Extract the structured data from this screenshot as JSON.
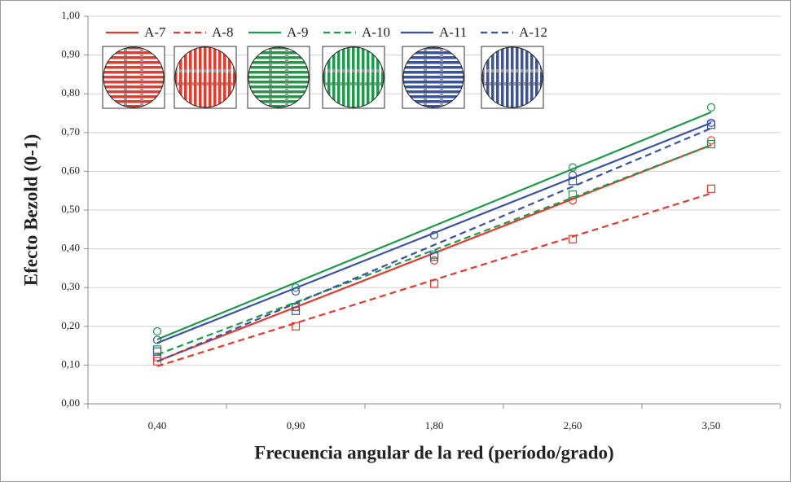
{
  "chart_data": {
    "type": "scatter-trend",
    "x_label": "Frecuencia angular de la red (período/grado)",
    "y_label": "Efecto Bezold (0-1)",
    "categories": [
      "0,40",
      "0,90",
      "1,80",
      "2,60",
      "3,50"
    ],
    "ylim": [
      0,
      1
    ],
    "yticks": [
      {
        "value": 0,
        "label": "0,00"
      },
      {
        "value": 0.1,
        "label": "0,10"
      },
      {
        "value": 0.2,
        "label": "0,20"
      },
      {
        "value": 0.3,
        "label": "0,30"
      },
      {
        "value": 0.4,
        "label": "0,40"
      },
      {
        "value": 0.5,
        "label": "0,50"
      },
      {
        "value": 0.6,
        "label": "0,60"
      },
      {
        "value": 0.7,
        "label": "0,70"
      },
      {
        "value": 0.8,
        "label": "0,80"
      },
      {
        "value": 0.9,
        "label": "0,90"
      },
      {
        "value": 1,
        "label": "1,00"
      }
    ],
    "grid": true,
    "legend": "top-left",
    "series": [
      {
        "name": "A-7",
        "color": "#e8392d",
        "marker": "circle",
        "dashed": false,
        "values": [
          0.12,
          0.25,
          0.37,
          0.525,
          0.68
        ]
      },
      {
        "name": "A-8",
        "color": "#e8392d",
        "marker": "square",
        "dashed": true,
        "values": [
          0.11,
          0.2,
          0.31,
          0.425,
          0.555
        ]
      },
      {
        "name": "A-9",
        "color": "#1e9a4a",
        "marker": "circle",
        "dashed": false,
        "values": [
          0.187,
          0.3,
          0.435,
          0.61,
          0.765
        ]
      },
      {
        "name": "A-10",
        "color": "#1e9a4a",
        "marker": "square",
        "dashed": true,
        "values": [
          0.14,
          0.25,
          0.385,
          0.54,
          0.67
        ]
      },
      {
        "name": "A-11",
        "color": "#3a52a3",
        "marker": "circle",
        "dashed": false,
        "values": [
          0.165,
          0.29,
          0.435,
          0.59,
          0.725
        ]
      },
      {
        "name": "A-12",
        "color": "#3a52a3",
        "marker": "square",
        "dashed": true,
        "values": [
          0.135,
          0.24,
          0.38,
          0.575,
          0.72
        ]
      }
    ]
  }
}
